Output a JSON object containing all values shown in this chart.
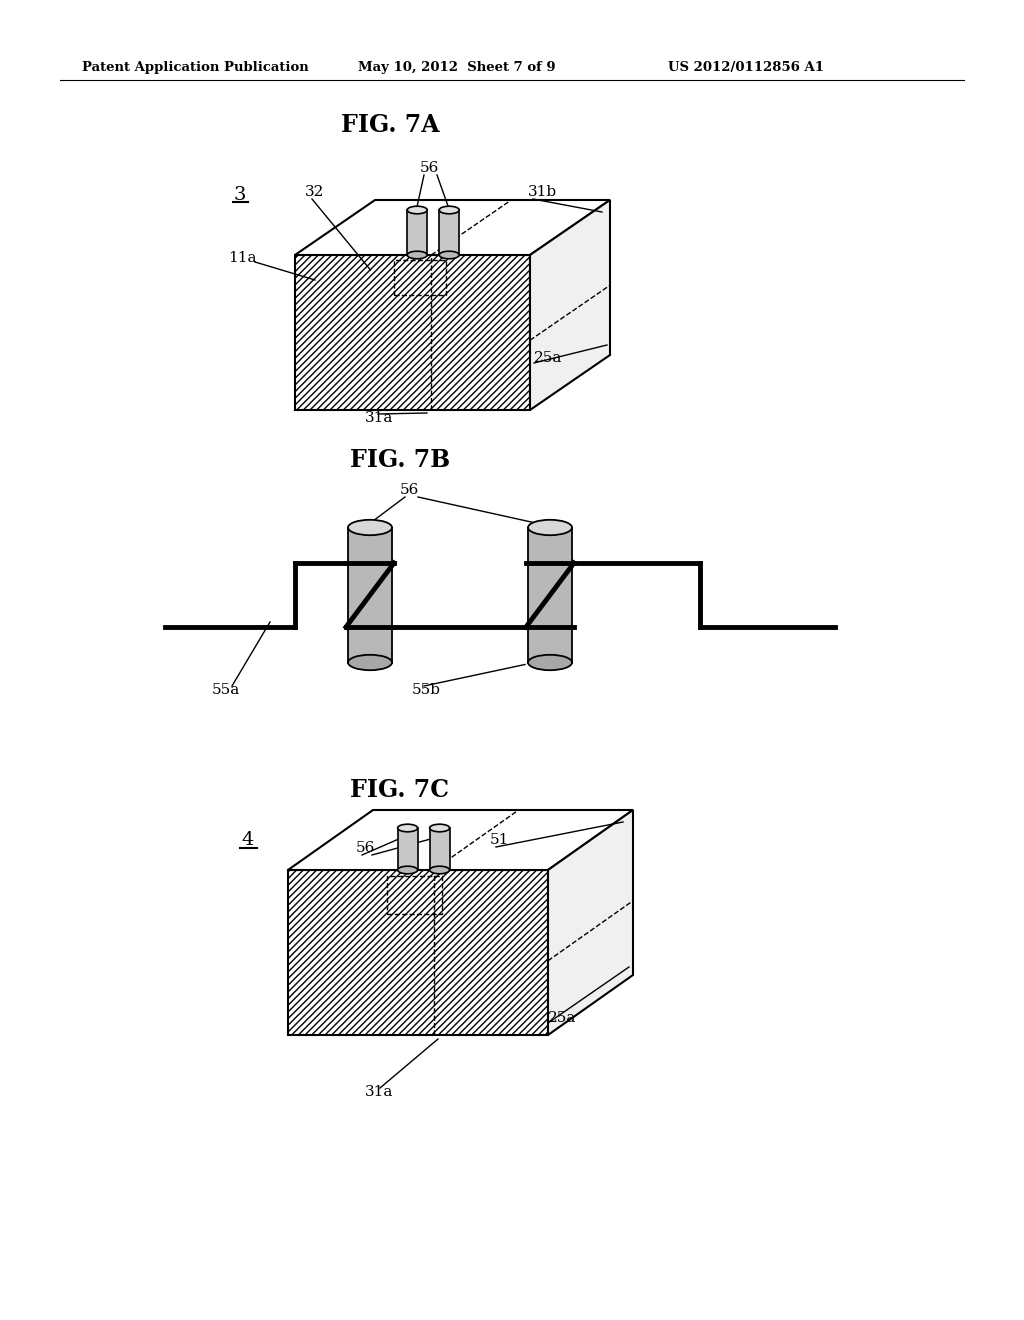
{
  "header_left": "Patent Application Publication",
  "header_mid": "May 10, 2012  Sheet 7 of 9",
  "header_right": "US 2012/0112856 A1",
  "fig7a_title": "FIG. 7A",
  "fig7b_title": "FIG. 7B",
  "fig7c_title": "FIG. 7C",
  "bg_color": "#ffffff",
  "line_color": "#000000"
}
